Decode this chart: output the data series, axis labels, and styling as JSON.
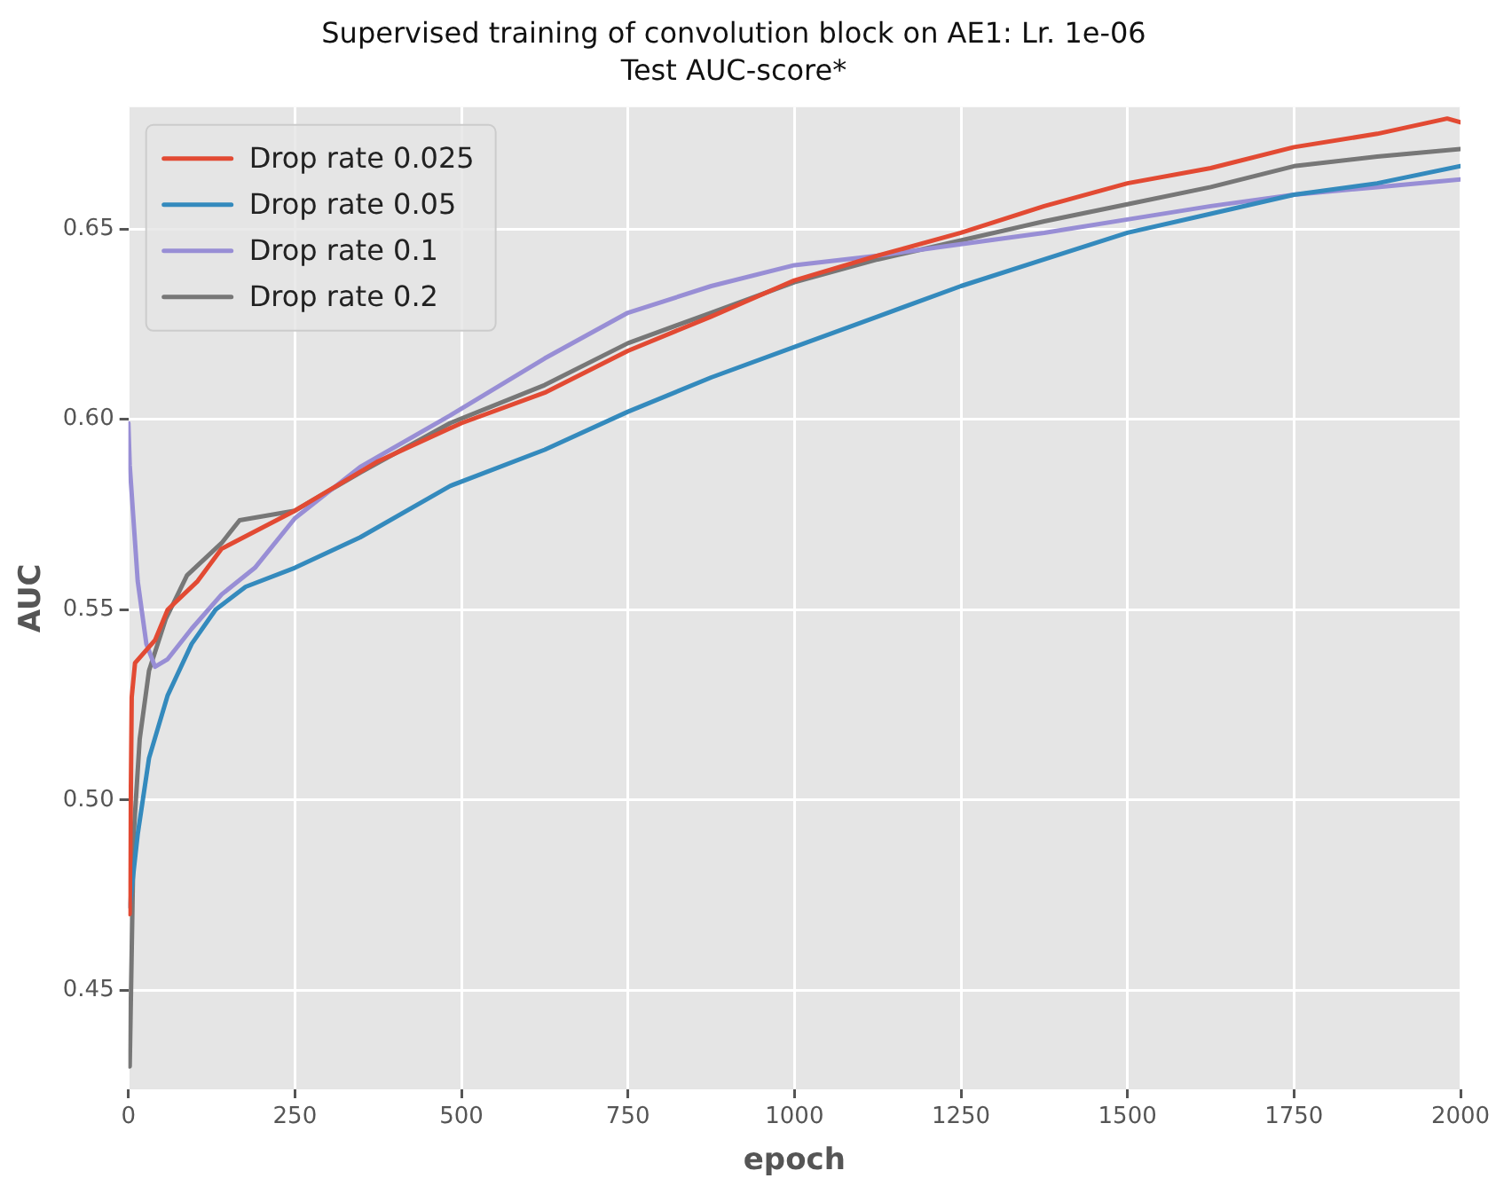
{
  "chart_data": {
    "type": "line",
    "title": "Supervised training of convolution block on AE1: Lr. 1e-06",
    "subtitle": "Test AUC-score*",
    "xlabel": "epoch",
    "ylabel": "AUC",
    "xlim": [
      0,
      2000
    ],
    "xticks": [
      0,
      250,
      500,
      750,
      1000,
      1250,
      1500,
      1750,
      2000
    ],
    "ylim": [
      0.424,
      0.682
    ],
    "yticks": [
      {
        "value": 0.45,
        "label": "0.45"
      },
      {
        "value": 0.5,
        "label": "0.50"
      },
      {
        "value": 0.55,
        "label": "0.55"
      },
      {
        "value": 0.6,
        "label": "0.60"
      },
      {
        "value": 0.65,
        "label": "0.65"
      }
    ],
    "grid": true,
    "legend": "top left",
    "marker": "none",
    "line_style": "solid",
    "series": [
      {
        "name": "Drop rate 0.025",
        "color": "#e24a33",
        "x": [
          2,
          5,
          10,
          40,
          59,
          104,
          140,
          250,
          375,
          500,
          625,
          750,
          875,
          1000,
          1125,
          1250,
          1375,
          1500,
          1625,
          1750,
          1875,
          1980,
          2000
        ],
        "values": [
          0.47,
          0.527,
          0.536,
          0.542,
          0.55,
          0.5575,
          0.566,
          0.576,
          0.589,
          0.599,
          0.607,
          0.618,
          0.627,
          0.6365,
          0.643,
          0.649,
          0.656,
          0.662,
          0.666,
          0.6715,
          0.675,
          0.679,
          0.678
        ]
      },
      {
        "name": "Drop rate 0.05",
        "color": "#348abd",
        "x": [
          2,
          14,
          31,
          59,
          95,
          131,
          176,
          250,
          348,
          483,
          625,
          750,
          875,
          1000,
          1125,
          1250,
          1375,
          1500,
          1625,
          1750,
          1875,
          2000
        ],
        "values": [
          0.472,
          0.491,
          0.511,
          0.5275,
          0.541,
          0.55,
          0.556,
          0.561,
          0.569,
          0.5825,
          0.592,
          0.602,
          0.611,
          0.619,
          0.627,
          0.635,
          0.642,
          0.649,
          0.654,
          0.659,
          0.662,
          0.6665
        ]
      },
      {
        "name": "Drop rate 0.1",
        "color": "#988ed5",
        "x": [
          0,
          2,
          14,
          27,
          40,
          59,
          95,
          140,
          190,
          250,
          348,
          483,
          625,
          750,
          875,
          1000,
          1125,
          1250,
          1375,
          1500,
          1625,
          1750,
          1875,
          2000
        ],
        "values": [
          0.599,
          0.588,
          0.5575,
          0.541,
          0.535,
          0.537,
          0.545,
          0.554,
          0.561,
          0.574,
          0.5875,
          0.601,
          0.616,
          0.628,
          0.635,
          0.6405,
          0.643,
          0.646,
          0.649,
          0.6525,
          0.656,
          0.659,
          0.661,
          0.663
        ]
      },
      {
        "name": "Drop rate 0.2",
        "color": "#777777",
        "x": [
          2,
          8,
          17,
          31,
          56,
          88,
          140,
          167,
          250,
          348,
          483,
          625,
          750,
          875,
          1000,
          1125,
          1250,
          1375,
          1500,
          1625,
          1750,
          1875,
          2000
        ],
        "values": [
          0.43,
          0.491,
          0.516,
          0.534,
          0.5475,
          0.559,
          0.5675,
          0.5735,
          0.576,
          0.586,
          0.599,
          0.609,
          0.62,
          0.628,
          0.636,
          0.642,
          0.647,
          0.652,
          0.6565,
          0.661,
          0.6665,
          0.669,
          0.671
        ]
      }
    ]
  }
}
